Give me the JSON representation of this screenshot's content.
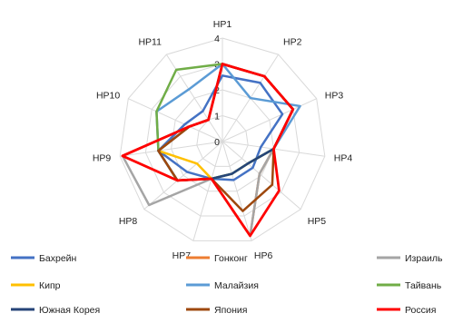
{
  "chart_data": {
    "type": "radar",
    "axes": [
      "HP1",
      "HP2",
      "HP3",
      "HP4",
      "HP5",
      "HP6",
      "HP7",
      "HP8",
      "HP9",
      "HP10",
      "HP11"
    ],
    "rmin": 0,
    "rmax": 4,
    "ticks": [
      "0",
      "1",
      "2",
      "3",
      "4"
    ],
    "grid": true,
    "legend_position": "bottom",
    "series": [
      {
        "name": "Бахрейн",
        "color": "#4472C4",
        "values": [
          2.55,
          2.7,
          2.55,
          1.5,
          1.55,
          1.55,
          1.5,
          1.8,
          2.5,
          1.6,
          1.4
        ]
      },
      {
        "name": "Гонконг",
        "color": "#ED7D31",
        "values": [
          3.0,
          3.0,
          3.0,
          2.0,
          1.9,
          3.8,
          1.5,
          2.3,
          3.9,
          1.4,
          1.0
        ]
      },
      {
        "name": "Израиль",
        "color": "#A5A5A5",
        "values": [
          3.0,
          3.0,
          3.0,
          2.0,
          1.9,
          3.8,
          1.5,
          3.75,
          3.9,
          1.4,
          1.0
        ]
      },
      {
        "name": "Кипр",
        "color": "#FFC000",
        "values": [
          3.0,
          3.0,
          3.0,
          2.0,
          1.3,
          1.3,
          1.5,
          1.3,
          2.5,
          1.4,
          1.0
        ]
      },
      {
        "name": "Малайзия",
        "color": "#5B9BD5",
        "values": [
          3.0,
          2.0,
          3.3,
          2.0,
          1.3,
          1.3,
          1.5,
          2.3,
          2.5,
          2.8,
          2.4
        ]
      },
      {
        "name": "Тайвань",
        "color": "#70AD47",
        "values": [
          3.0,
          3.0,
          3.0,
          2.0,
          1.3,
          1.3,
          1.5,
          2.3,
          2.5,
          2.8,
          3.3
        ]
      },
      {
        "name": "Южная Корея",
        "color": "#264478",
        "values": [
          3.0,
          3.0,
          3.0,
          2.0,
          1.3,
          1.3,
          1.5,
          2.3,
          2.5,
          1.4,
          1.0
        ]
      },
      {
        "name": "Япония",
        "color": "#9E480E",
        "values": [
          3.0,
          3.0,
          3.0,
          2.0,
          2.55,
          2.8,
          1.5,
          2.3,
          2.5,
          1.4,
          1.0
        ]
      },
      {
        "name": "Россия",
        "color": "#FF0000",
        "values": [
          3.0,
          3.0,
          3.0,
          2.0,
          2.9,
          3.8,
          1.5,
          2.3,
          3.9,
          1.4,
          1.0
        ]
      }
    ]
  }
}
